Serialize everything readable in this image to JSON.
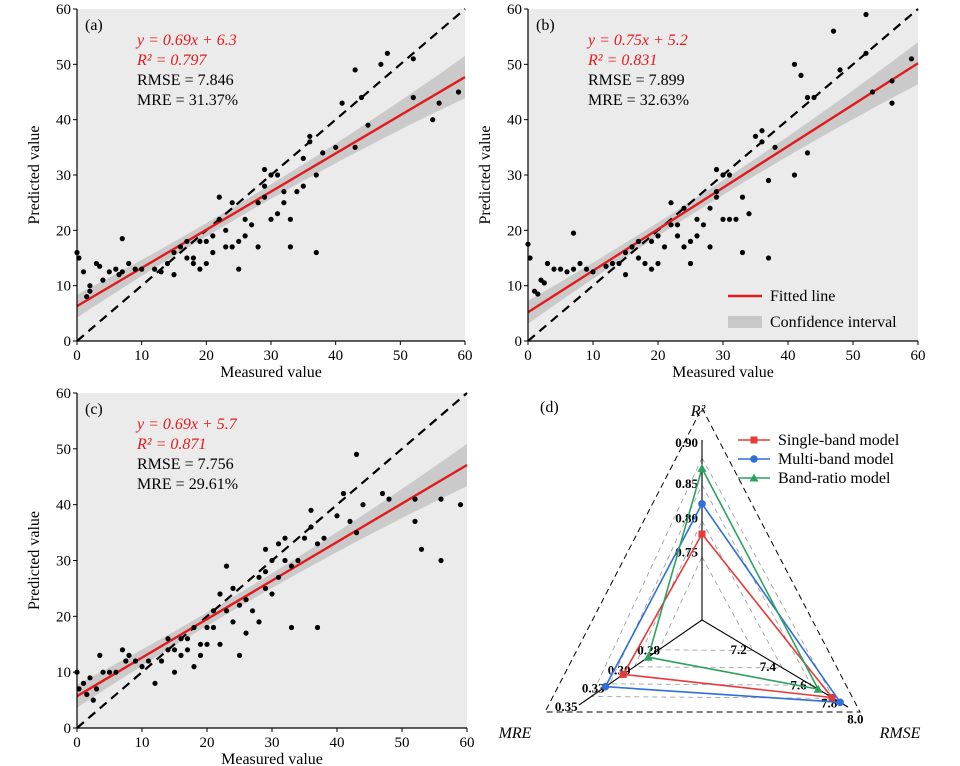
{
  "chart_data": [
    {
      "panel": "(a)",
      "type": "scatter",
      "xlabel": "Measured value",
      "ylabel": "Predicted value",
      "xlim": [
        0,
        60
      ],
      "ylim": [
        0,
        60
      ],
      "xticks": [
        0,
        10,
        20,
        30,
        40,
        50,
        60
      ],
      "yticks": [
        0,
        10,
        20,
        30,
        40,
        50,
        60
      ],
      "grid": false,
      "background": "#ebebeb",
      "equation": "y = 0.69x + 6.3",
      "r2_label": "R² = 0.797",
      "rmse_label": "RMSE = 7.846",
      "mre_label": "MRE = 31.37%",
      "fit": {
        "slope": 0.69,
        "intercept": 6.3
      },
      "points": [
        [
          0,
          16
        ],
        [
          0.3,
          15
        ],
        [
          1,
          12.5
        ],
        [
          1.5,
          8
        ],
        [
          2,
          9
        ],
        [
          2,
          10
        ],
        [
          3,
          14
        ],
        [
          3.5,
          13.5
        ],
        [
          4,
          11
        ],
        [
          5,
          12.5
        ],
        [
          6,
          13
        ],
        [
          6.5,
          12
        ],
        [
          7,
          18.5
        ],
        [
          7,
          12.5
        ],
        [
          8,
          14
        ],
        [
          9,
          13
        ],
        [
          10,
          13
        ],
        [
          12,
          13
        ],
        [
          13,
          12.5
        ],
        [
          14,
          14
        ],
        [
          15,
          12
        ],
        [
          15,
          16
        ],
        [
          16,
          17
        ],
        [
          17,
          18
        ],
        [
          17,
          15
        ],
        [
          18,
          15
        ],
        [
          18,
          14
        ],
        [
          19,
          18
        ],
        [
          19,
          13
        ],
        [
          20,
          18
        ],
        [
          20,
          14
        ],
        [
          21,
          19
        ],
        [
          21,
          16
        ],
        [
          22,
          22
        ],
        [
          22,
          26
        ],
        [
          23,
          20
        ],
        [
          23,
          17
        ],
        [
          24,
          25
        ],
        [
          24,
          17
        ],
        [
          25,
          18
        ],
        [
          25,
          13
        ],
        [
          26,
          19
        ],
        [
          26,
          22
        ],
        [
          27,
          21
        ],
        [
          28,
          25
        ],
        [
          28,
          17
        ],
        [
          29,
          31
        ],
        [
          29,
          28
        ],
        [
          29,
          26
        ],
        [
          30,
          30
        ],
        [
          30,
          22
        ],
        [
          31,
          23
        ],
        [
          31,
          30
        ],
        [
          32,
          27
        ],
        [
          32,
          25
        ],
        [
          33,
          22
        ],
        [
          33,
          17
        ],
        [
          34,
          27
        ],
        [
          35,
          33
        ],
        [
          35,
          28
        ],
        [
          36,
          37
        ],
        [
          36,
          36
        ],
        [
          37,
          30
        ],
        [
          37,
          16
        ],
        [
          38,
          34
        ],
        [
          40,
          35
        ],
        [
          41,
          43
        ],
        [
          43,
          35
        ],
        [
          43,
          49
        ],
        [
          44,
          44
        ],
        [
          47,
          50
        ],
        [
          48,
          52
        ],
        [
          52,
          51
        ],
        [
          55,
          40
        ],
        [
          56,
          43
        ],
        [
          59,
          45
        ],
        [
          52,
          44
        ],
        [
          45,
          39
        ]
      ]
    },
    {
      "panel": "(b)",
      "type": "scatter",
      "xlabel": "Measured value",
      "ylabel": "Predicted value",
      "xlim": [
        0,
        60
      ],
      "ylim": [
        0,
        60
      ],
      "xticks": [
        0,
        10,
        20,
        30,
        40,
        50,
        60
      ],
      "yticks": [
        0,
        10,
        20,
        30,
        40,
        50,
        60
      ],
      "grid": false,
      "background": "#ebebeb",
      "equation": "y = 0.75x + 5.2",
      "r2_label": "R² = 0.831",
      "rmse_label": "RMSE = 7.899",
      "mre_label": "MRE = 32.63%",
      "fit": {
        "slope": 0.75,
        "intercept": 5.2
      },
      "legend_position": "bottom-right",
      "legend": [
        {
          "label": "Fitted line",
          "kind": "line",
          "color": "#e31a1c"
        },
        {
          "label": "Confidence interval",
          "kind": "band",
          "color": "#c8c8c8"
        }
      ],
      "points": [
        [
          0,
          17.5
        ],
        [
          0.3,
          15
        ],
        [
          1,
          9
        ],
        [
          1.5,
          8.5
        ],
        [
          2,
          11
        ],
        [
          2.5,
          10.5
        ],
        [
          3,
          14
        ],
        [
          4,
          13
        ],
        [
          5,
          13
        ],
        [
          6,
          12.5
        ],
        [
          7,
          13
        ],
        [
          7,
          19.5
        ],
        [
          8,
          14
        ],
        [
          9,
          13
        ],
        [
          10,
          12.5
        ],
        [
          12,
          13.5
        ],
        [
          13,
          14
        ],
        [
          14,
          14
        ],
        [
          15,
          12
        ],
        [
          15,
          16
        ],
        [
          16,
          17
        ],
        [
          17,
          18
        ],
        [
          17,
          15
        ],
        [
          18,
          14
        ],
        [
          19,
          18
        ],
        [
          19,
          13
        ],
        [
          20,
          19
        ],
        [
          20,
          14
        ],
        [
          21,
          17
        ],
        [
          22,
          21
        ],
        [
          22,
          25
        ],
        [
          23,
          21
        ],
        [
          23,
          19
        ],
        [
          24,
          24
        ],
        [
          24,
          17
        ],
        [
          25,
          18
        ],
        [
          25,
          14
        ],
        [
          26,
          19
        ],
        [
          26,
          22
        ],
        [
          27,
          21
        ],
        [
          28,
          24
        ],
        [
          28,
          17
        ],
        [
          29,
          31
        ],
        [
          29,
          27
        ],
        [
          29,
          26
        ],
        [
          30,
          30
        ],
        [
          30,
          22
        ],
        [
          31,
          22
        ],
        [
          31,
          30
        ],
        [
          32,
          22
        ],
        [
          33,
          26
        ],
        [
          33,
          16
        ],
        [
          34,
          23
        ],
        [
          35,
          37
        ],
        [
          36,
          38
        ],
        [
          36,
          36
        ],
        [
          37,
          29
        ],
        [
          37,
          15
        ],
        [
          38,
          35
        ],
        [
          41,
          50
        ],
        [
          41,
          30
        ],
        [
          42,
          48
        ],
        [
          43,
          34
        ],
        [
          43,
          44
        ],
        [
          44,
          44
        ],
        [
          47,
          56
        ],
        [
          48,
          49
        ],
        [
          52,
          59
        ],
        [
          52,
          52
        ],
        [
          53,
          45
        ],
        [
          56,
          47
        ],
        [
          56,
          43
        ],
        [
          59,
          51
        ]
      ]
    },
    {
      "panel": "(c)",
      "type": "scatter",
      "xlabel": "Measured value",
      "ylabel": "Predicted value",
      "xlim": [
        0,
        60
      ],
      "ylim": [
        0,
        60
      ],
      "xticks": [
        0,
        10,
        20,
        30,
        40,
        50,
        60
      ],
      "yticks": [
        0,
        10,
        20,
        30,
        40,
        50,
        60
      ],
      "grid": false,
      "background": "#ebebeb",
      "equation": "y = 0.69x + 5.7",
      "r2_label": "R² = 0.871",
      "rmse_label": "RMSE = 7.756",
      "mre_label": "MRE = 29.61%",
      "fit": {
        "slope": 0.69,
        "intercept": 5.7
      },
      "points": [
        [
          0,
          10
        ],
        [
          0.3,
          7
        ],
        [
          1,
          8
        ],
        [
          1.5,
          6
        ],
        [
          2,
          9
        ],
        [
          2.5,
          5
        ],
        [
          3,
          7
        ],
        [
          3.5,
          13
        ],
        [
          4,
          10
        ],
        [
          5,
          10
        ],
        [
          6,
          10
        ],
        [
          7,
          14
        ],
        [
          7.5,
          12
        ],
        [
          8,
          13
        ],
        [
          9,
          12
        ],
        [
          10,
          11
        ],
        [
          11,
          12
        ],
        [
          12,
          8
        ],
        [
          13,
          12
        ],
        [
          14,
          14
        ],
        [
          14,
          16
        ],
        [
          15,
          10
        ],
        [
          15,
          14
        ],
        [
          16,
          16
        ],
        [
          16,
          13
        ],
        [
          17,
          16
        ],
        [
          17,
          14
        ],
        [
          18,
          11
        ],
        [
          18,
          18
        ],
        [
          19,
          15
        ],
        [
          19,
          13
        ],
        [
          20,
          18
        ],
        [
          20,
          15
        ],
        [
          21,
          21
        ],
        [
          21,
          18
        ],
        [
          22,
          24
        ],
        [
          22,
          15
        ],
        [
          23,
          29
        ],
        [
          23,
          21
        ],
        [
          24,
          25
        ],
        [
          24,
          19
        ],
        [
          25,
          22
        ],
        [
          25,
          13
        ],
        [
          26,
          23
        ],
        [
          26,
          17
        ],
        [
          27,
          21
        ],
        [
          28,
          27
        ],
        [
          28,
          19
        ],
        [
          29,
          32
        ],
        [
          29,
          28
        ],
        [
          29,
          25
        ],
        [
          30,
          30
        ],
        [
          30,
          24
        ],
        [
          31,
          33
        ],
        [
          31,
          27
        ],
        [
          32,
          34
        ],
        [
          32,
          30
        ],
        [
          33,
          29
        ],
        [
          33,
          18
        ],
        [
          34,
          30
        ],
        [
          35,
          34
        ],
        [
          36,
          39
        ],
        [
          36,
          36
        ],
        [
          37,
          33
        ],
        [
          37,
          18
        ],
        [
          38,
          34
        ],
        [
          40,
          38
        ],
        [
          41,
          42
        ],
        [
          42,
          37
        ],
        [
          43,
          49
        ],
        [
          43,
          35
        ],
        [
          44,
          40
        ],
        [
          47,
          42
        ],
        [
          48,
          41
        ],
        [
          52,
          41
        ],
        [
          52,
          37
        ],
        [
          53,
          32
        ],
        [
          56,
          30
        ],
        [
          56,
          41
        ],
        [
          59,
          40
        ]
      ]
    },
    {
      "panel": "(d)",
      "type": "radar",
      "axes": [
        {
          "name": "R²",
          "ticks": [
            "0.75",
            "0.80",
            "0.85",
            "0.90"
          ],
          "range": [
            0.7,
            0.9
          ]
        },
        {
          "name": "RMSE",
          "ticks": [
            "7.2",
            "7.4",
            "7.6",
            "7.8",
            "8.0"
          ],
          "range": [
            7.0,
            8.0
          ]
        },
        {
          "name": "MRE",
          "ticks": [
            "0.28",
            "0.30",
            "0.33",
            "0.35"
          ],
          "range": [
            0.26,
            0.35
          ]
        }
      ],
      "legend_position": "top-right",
      "series": [
        {
          "name": "Single-band model",
          "color": "#e8393a",
          "marker": "square",
          "values": {
            "R²": 0.797,
            "RMSE": 7.846,
            "MRE": 0.3137
          }
        },
        {
          "name": "Multi-band model",
          "color": "#2f6fdc",
          "marker": "circle",
          "values": {
            "R²": 0.831,
            "RMSE": 7.899,
            "MRE": 0.3263
          }
        },
        {
          "name": "Band-ratio model",
          "color": "#2ca25f",
          "marker": "triangle",
          "values": {
            "R²": 0.871,
            "RMSE": 7.756,
            "MRE": 0.2961
          }
        }
      ]
    }
  ]
}
